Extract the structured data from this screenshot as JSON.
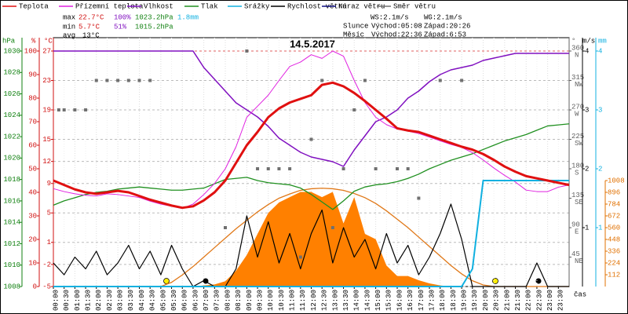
{
  "chart_data": {
    "type": "line",
    "title": "14.5.2017",
    "xlabel": "čas",
    "xlim": [
      0,
      24
    ],
    "x": [
      0,
      0.5,
      1,
      1.5,
      2,
      2.5,
      3,
      3.5,
      4,
      4.5,
      5,
      5.5,
      6,
      6.5,
      7,
      7.5,
      8,
      8.5,
      9,
      9.5,
      10,
      10.5,
      11,
      11.5,
      12,
      12.5,
      13,
      13.5,
      14,
      14.5,
      15,
      15.5,
      16,
      16.5,
      17,
      17.5,
      18,
      18.5,
      19,
      19.5,
      20,
      20.5,
      21,
      21.5,
      22,
      22.5,
      23,
      23.5,
      24
    ],
    "xticks": [
      {
        "value": 0,
        "label": "00:00"
      },
      {
        "value": 0.5,
        "label": "00:30"
      },
      {
        "value": 1,
        "label": "01:00"
      },
      {
        "value": 1.5,
        "label": "01:30"
      },
      {
        "value": 2,
        "label": "02:00"
      },
      {
        "value": 2.5,
        "label": "02:30"
      },
      {
        "value": 3,
        "label": "03:00"
      },
      {
        "value": 3.5,
        "label": "03:30"
      },
      {
        "value": 4,
        "label": "04:00"
      },
      {
        "value": 4.5,
        "label": "04:30"
      },
      {
        "value": 5,
        "label": "05:00"
      },
      {
        "value": 5.5,
        "label": "05:30"
      },
      {
        "value": 6,
        "label": "06:00"
      },
      {
        "value": 6.5,
        "label": "06:30"
      },
      {
        "value": 7,
        "label": "07:00"
      },
      {
        "value": 7.5,
        "label": "07:30"
      },
      {
        "value": 8,
        "label": "08:00"
      },
      {
        "value": 8.5,
        "label": "08:30"
      },
      {
        "value": 9,
        "label": "09:00"
      },
      {
        "value": 9.5,
        "label": "09:30"
      },
      {
        "value": 10,
        "label": "10:00"
      },
      {
        "value": 10.5,
        "label": "10:30"
      },
      {
        "value": 11,
        "label": "11:00"
      },
      {
        "value": 11.5,
        "label": "11:30"
      },
      {
        "value": 12,
        "label": "12:00"
      },
      {
        "value": 12.5,
        "label": "12:30"
      },
      {
        "value": 13,
        "label": "13:00"
      },
      {
        "value": 13.5,
        "label": "13:30"
      },
      {
        "value": 14,
        "label": "14:00"
      },
      {
        "value": 14.5,
        "label": "14:30"
      },
      {
        "value": 15,
        "label": "15:00"
      },
      {
        "value": 15.5,
        "label": "15:30"
      },
      {
        "value": 16,
        "label": "16:00"
      },
      {
        "value": 16.5,
        "label": "16:30"
      },
      {
        "value": 17,
        "label": "17:00"
      },
      {
        "value": 17.5,
        "label": "17:30"
      },
      {
        "value": 18,
        "label": "18:00"
      },
      {
        "value": 18.5,
        "label": "18:30"
      },
      {
        "value": 19,
        "label": "19:00"
      },
      {
        "value": 19.5,
        "label": "19:30"
      },
      {
        "value": 20,
        "label": "20:00"
      },
      {
        "value": 20.5,
        "label": "20:30"
      },
      {
        "value": 21,
        "label": "21:00"
      },
      {
        "value": 21.5,
        "label": "21:30"
      },
      {
        "value": 22,
        "label": "22:00"
      },
      {
        "value": 22.5,
        "label": "22:30"
      },
      {
        "value": 23,
        "label": "23:00"
      },
      {
        "value": 23.5,
        "label": "23:30"
      }
    ],
    "axes": {
      "pres": {
        "label": "hPa",
        "color": "#108010",
        "lim": [
          1008,
          1030
        ],
        "ticks": [
          1030,
          1028,
          1026,
          1024,
          1022,
          1020,
          1018,
          1016,
          1014,
          1012,
          1010,
          1008
        ]
      },
      "hum": {
        "label": "%",
        "color": "#d01010",
        "lim": [
          0,
          100
        ],
        "ticks": [
          100,
          90,
          80,
          70,
          60,
          50,
          40,
          30,
          20,
          10,
          0
        ]
      },
      "temp": {
        "label": "°C",
        "color": "#d01010",
        "lim": [
          -5,
          27
        ],
        "ticks": [
          27,
          23,
          19,
          15,
          12,
          9,
          5,
          1,
          -2,
          -5
        ]
      },
      "dir": {
        "label": "°",
        "color": "#606060",
        "lim": [
          0,
          360
        ],
        "ticks": [
          360,
          315,
          270,
          225,
          180,
          135,
          90,
          45
        ],
        "compass": [
          "N",
          "NW",
          "W",
          "SW",
          "S",
          "SE",
          "E",
          "NE"
        ]
      },
      "wind": {
        "label": "m/s",
        "color": "#000000",
        "lim": [
          0,
          4
        ],
        "ticks": [
          4,
          3,
          2,
          1
        ]
      },
      "rain": {
        "label": "mm",
        "color": "#10b0e0",
        "lim": [
          0,
          4
        ],
        "ticks": [
          4,
          3,
          2,
          1
        ]
      },
      "solar": {
        "color": "#e07000",
        "lim": [
          0,
          1008
        ],
        "ticks": [
          1008,
          896,
          784,
          672,
          560,
          448,
          336,
          224,
          112
        ]
      }
    },
    "series": [
      {
        "name": "Teplota",
        "color": "#e01010",
        "axis": "temp",
        "width": 3,
        "values": [
          9.4,
          8.8,
          8.2,
          7.8,
          7.6,
          7.8,
          8.0,
          7.8,
          7.3,
          6.8,
          6.4,
          6.0,
          5.7,
          5.9,
          6.7,
          7.8,
          9.4,
          11.8,
          14.2,
          16.0,
          18.0,
          19.2,
          20.0,
          20.5,
          21.0,
          22.4,
          22.7,
          22.2,
          21.3,
          20.2,
          19.0,
          17.8,
          16.5,
          16.2,
          16.0,
          15.5,
          15.0,
          14.5,
          14.0,
          13.6,
          13.0,
          12.2,
          11.3,
          10.6,
          10.0,
          9.7,
          9.4,
          9.1,
          8.8
        ]
      },
      {
        "name": "Přízemní teplota",
        "color": "#e020e0",
        "axis": "temp",
        "width": 1,
        "values": [
          8.3,
          7.9,
          7.6,
          7.4,
          7.3,
          7.6,
          7.5,
          7.3,
          7.1,
          6.6,
          6.2,
          5.9,
          5.6,
          6.2,
          7.5,
          9.0,
          11.0,
          14.0,
          18.0,
          19.5,
          21.0,
          23.0,
          24.9,
          25.5,
          26.5,
          26.0,
          27.0,
          26.3,
          23.0,
          20.0,
          18.0,
          17.0,
          16.4,
          16.1,
          15.8,
          15.3,
          14.8,
          14.3,
          13.9,
          13.2,
          12.2,
          11.1,
          10.1,
          9.2,
          8.1,
          7.9,
          7.9,
          8.5,
          8.8
        ]
      },
      {
        "name": "Vlhkost",
        "color": "#8010c0",
        "axis": "hum",
        "width": 1.5,
        "values": [
          100,
          100,
          100,
          100,
          100,
          100,
          100,
          100,
          100,
          100,
          100,
          100,
          100,
          100,
          93,
          88,
          83,
          78,
          75,
          72,
          68,
          63,
          60,
          57,
          55,
          54,
          53,
          51,
          58,
          64,
          70,
          72,
          75,
          80,
          83,
          87,
          90,
          92,
          93,
          94,
          96,
          97,
          98,
          99,
          99,
          99,
          99,
          99,
          99
        ]
      },
      {
        "name": "Tlak",
        "color": "#209020",
        "axis": "pres",
        "width": 1.3,
        "values": [
          1015.6,
          1016.0,
          1016.3,
          1016.6,
          1016.8,
          1016.9,
          1017.1,
          1017.2,
          1017.3,
          1017.2,
          1017.1,
          1017.0,
          1017.0,
          1017.1,
          1017.2,
          1017.6,
          1018.0,
          1018.1,
          1018.2,
          1017.9,
          1017.7,
          1017.6,
          1017.5,
          1017.2,
          1016.6,
          1015.9,
          1015.2,
          1016.0,
          1016.9,
          1017.3,
          1017.5,
          1017.6,
          1017.8,
          1018.1,
          1018.5,
          1019.0,
          1019.4,
          1019.8,
          1020.1,
          1020.4,
          1020.8,
          1021.2,
          1021.6,
          1021.9,
          1022.2,
          1022.6,
          1023.0,
          1023.1,
          1023.2
        ]
      },
      {
        "name": "Srážky",
        "color": "#10b0e0",
        "axis": "rain",
        "width": 2,
        "values": [
          0,
          0,
          0,
          0,
          0,
          0,
          0,
          0,
          0,
          0,
          0,
          0,
          0,
          0,
          0,
          0,
          0,
          0,
          0,
          0,
          0,
          0,
          0,
          0,
          0,
          0,
          0,
          0,
          0,
          0,
          0,
          0,
          0,
          0,
          0,
          0,
          0,
          0,
          0,
          0.3,
          1.8,
          1.8,
          1.8,
          1.8,
          1.8,
          1.8,
          1.8,
          1.8,
          1.8
        ]
      },
      {
        "name": "Rychlost větru",
        "color": "#000000",
        "axis": "wind",
        "width": 1.2,
        "values": [
          0.4,
          0.2,
          0.5,
          0.3,
          0.6,
          0.2,
          0.4,
          0.7,
          0.3,
          0.6,
          0.2,
          0.7,
          0.3,
          0.0,
          0.1,
          0.0,
          0.0,
          0.3,
          1.2,
          0.5,
          1.1,
          0.4,
          0.9,
          0.3,
          0.9,
          1.3,
          0.4,
          1.0,
          0.5,
          0.8,
          0.3,
          0.9,
          0.4,
          0.7,
          0.2,
          0.5,
          0.9,
          1.4,
          0.8,
          0.0,
          0.0,
          0.0,
          0.0,
          0.0,
          0.0,
          0.4,
          0.0,
          0.0,
          0.0
        ]
      },
      {
        "name": "Náraz větru",
        "color": "#101080"
      },
      {
        "name": "Směr větru",
        "color": "#707070",
        "axis": "dir",
        "scatter": true,
        "x": [
          0.25,
          0.5,
          1,
          1.5,
          2,
          2.5,
          3,
          3.5,
          4,
          4.5,
          8,
          9,
          9.5,
          10,
          10.5,
          11,
          11.5,
          12,
          12.5,
          13,
          13.5,
          14,
          14.5,
          15,
          16,
          16.5,
          17,
          18,
          19
        ],
        "values": [
          270,
          270,
          270,
          270,
          315,
          315,
          315,
          315,
          315,
          315,
          90,
          360,
          180,
          180,
          180,
          180,
          45,
          225,
          315,
          90,
          180,
          270,
          315,
          180,
          180,
          180,
          135,
          315,
          315
        ]
      }
    ],
    "solar": {
      "color": "#ff8000",
      "line_color": "#e07818",
      "axis": "solar",
      "values": [
        0,
        0,
        0,
        0,
        0,
        0,
        0,
        0,
        0,
        0,
        0,
        0,
        0,
        0,
        10,
        20,
        50,
        150,
        300,
        500,
        700,
        800,
        850,
        900,
        900,
        850,
        900,
        600,
        850,
        500,
        450,
        200,
        100,
        100,
        60,
        30,
        10,
        0,
        0,
        0,
        0,
        0,
        0,
        0,
        0,
        0,
        0,
        0,
        0
      ],
      "theoretical": [
        0,
        0,
        0,
        0,
        0,
        0,
        0,
        0,
        0,
        0,
        0,
        40,
        110,
        190,
        280,
        370,
        460,
        550,
        630,
        710,
        780,
        840,
        880,
        915,
        930,
        935,
        930,
        915,
        885,
        845,
        790,
        720,
        640,
        560,
        470,
        380,
        290,
        200,
        120,
        55,
        15,
        0,
        0,
        0,
        0,
        0,
        0,
        0,
        0
      ]
    },
    "stats": {
      "max": {
        "label": "max",
        "temp": "22.7°C",
        "hum": "100%",
        "pres": "1023.2hPa",
        "rain": "1.8mm"
      },
      "min": {
        "label": "min",
        "temp": "5.7°C",
        "hum": "51%",
        "pres": "1015.2hPa"
      },
      "avg": {
        "label": "avg",
        "temp": "13°C"
      }
    },
    "info": {
      "ws": "WS:2.1m/s",
      "wg": "WG:2.1m/s",
      "sun": {
        "label": "Slunce",
        "rise": "Východ:05:08",
        "set": "Západ:20:26"
      },
      "moon": {
        "label": "Měsíc",
        "rise": "Východ:22:36",
        "set": "Západ:6:53"
      }
    }
  }
}
